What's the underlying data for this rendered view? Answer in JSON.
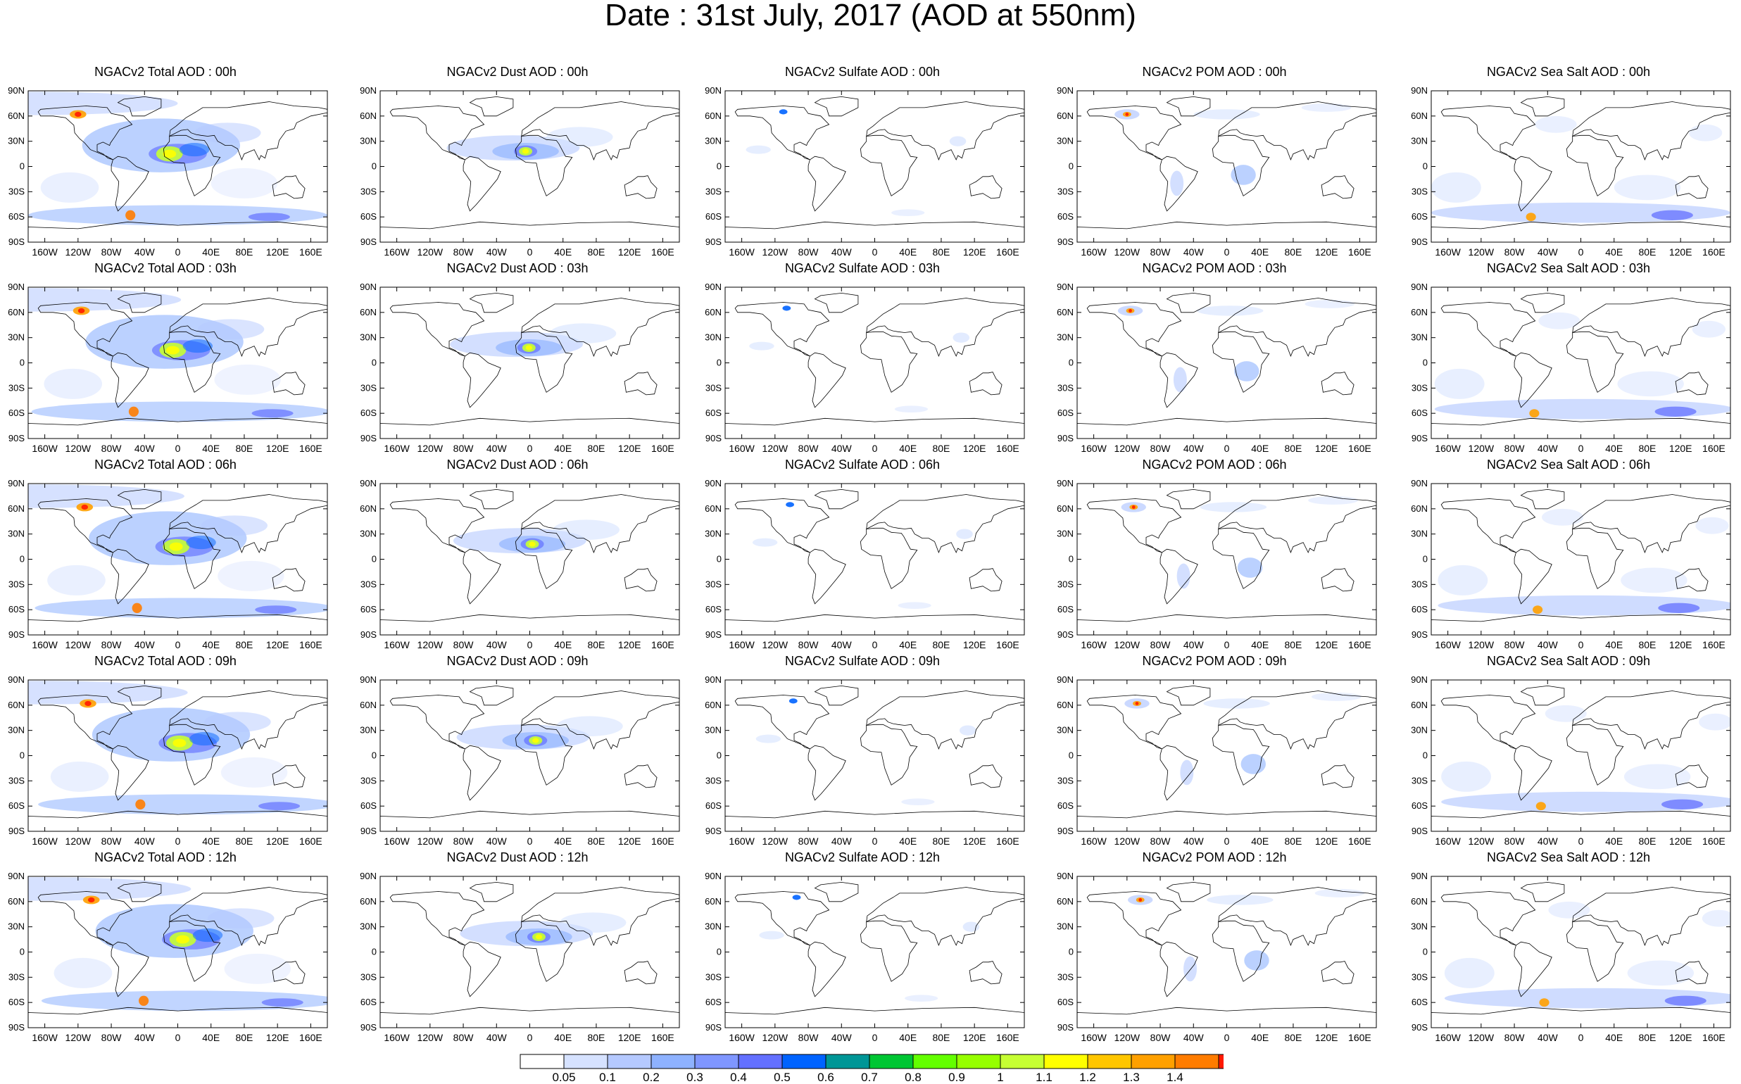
{
  "page": {
    "title": "Date : 31st July, 2017 (AOD at 550nm)"
  },
  "rows": [
    "00h",
    "03h",
    "06h",
    "09h",
    "12h"
  ],
  "species": [
    {
      "key": "total",
      "color": "#3c5ad8"
    },
    {
      "key": "dust",
      "color": "#2f52e0"
    },
    {
      "key": "sulfate",
      "color": "#7fa0f0"
    },
    {
      "key": "pom",
      "color": "#4a6ae6"
    },
    {
      "key": "seasalt",
      "color": "#4a6ae6"
    }
  ],
  "panels": [
    [
      "NGACv2 Total AOD : 00h",
      "NGACv2 Dust AOD : 00h",
      "NGACv2 Sulfate AOD : 00h",
      "NGACv2 POM AOD : 00h",
      "NGACv2 Sea Salt AOD : 00h"
    ],
    [
      "NGACv2 Total AOD : 03h",
      "NGACv2 Dust AOD : 03h",
      "NGACv2 Sulfate AOD : 03h",
      "NGACv2 POM AOD : 03h",
      "NGACv2 Sea Salt AOD : 03h"
    ],
    [
      "NGACv2 Total AOD : 06h",
      "NGACv2 Dust AOD : 06h",
      "NGACv2 Sulfate AOD : 06h",
      "NGACv2 POM AOD : 06h",
      "NGACv2 Sea Salt AOD : 06h"
    ],
    [
      "NGACv2 Total AOD : 09h",
      "NGACv2 Dust AOD : 09h",
      "NGACv2 Sulfate AOD : 09h",
      "NGACv2 POM AOD : 09h",
      "NGACv2 Sea Salt  AOD : 09h"
    ],
    [
      "NGACv2 Total AOD  : 12h",
      "NGACv2 Dust AOD : 12h",
      "NGACv2 Sulfate AOD : 12h",
      "NGACv2 POM  AOD : 12h",
      "NGACv2 Sea Salt  AOD : 12h"
    ]
  ],
  "axes": {
    "lat_ticks": [
      "90N",
      "60N",
      "30N",
      "0",
      "30S",
      "60S",
      "90S"
    ],
    "lon_ticks": [
      "160W",
      "120W",
      "80W",
      "40W",
      "0",
      "40E",
      "80E",
      "120E",
      "160E"
    ]
  },
  "colorbar": {
    "labels": [
      "0.05",
      "0.1",
      "0.2",
      "0.3",
      "0.4",
      "0.5",
      "0.6",
      "0.7",
      "0.8",
      "0.9",
      "1",
      "1.1",
      "1.2",
      "1.3",
      "1.4"
    ],
    "colors": [
      "#ffffff",
      "#d6e2ff",
      "#b5c9ff",
      "#8eb2ff",
      "#7f96ff",
      "#6370ff",
      "#0063ff",
      "#009696",
      "#00c633",
      "#63ff00",
      "#96ff00",
      "#c6ff33",
      "#ffff00",
      "#ffc600",
      "#ffa000",
      "#ff7c00",
      "#ff1900"
    ]
  }
}
